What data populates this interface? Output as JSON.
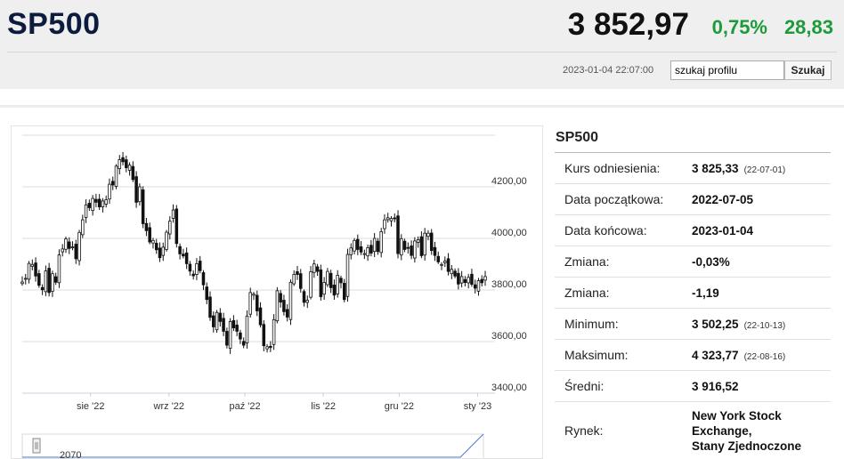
{
  "header": {
    "title": "SP500",
    "price": "3 852,97",
    "change_percent": "0,75%",
    "change_absolute": "28,83",
    "timestamp": "2023-01-04 22:07:00",
    "search_value": "szukaj profilu",
    "search_button": "Szukaj"
  },
  "colors": {
    "title": "#0d1b3e",
    "positive": "#1d9a3a",
    "grid": "#dddddd",
    "candle": "#111111",
    "navigator_line": "#4a79c4"
  },
  "info": {
    "title": "SP500",
    "rows": [
      {
        "label": "Kurs odniesienia:",
        "value": "3 825,33",
        "note": "(22-07-01)"
      },
      {
        "label": "Data początkowa:",
        "value": "2022-07-05",
        "note": ""
      },
      {
        "label": "Data końcowa:",
        "value": "2023-01-04",
        "note": ""
      },
      {
        "label": "Zmiana:",
        "value": "-0,03%",
        "note": ""
      },
      {
        "label": "Zmiana:",
        "value": "-1,19",
        "note": ""
      },
      {
        "label": "Minimum:",
        "value": "3 502,25",
        "note": "(22-10-13)"
      },
      {
        "label": "Maksimum:",
        "value": "4 323,77",
        "note": "(22-08-16)"
      },
      {
        "label": "Średni:",
        "value": "3 916,52",
        "note": ""
      }
    ],
    "market_label": "Rynek:",
    "market_lines": [
      "New York Stock",
      "Exchange,",
      "Stany Zjednoczone"
    ]
  },
  "chart_data": {
    "type": "candlestick",
    "y_ticks": [
      "4200,00",
      "4000,00",
      "3800,00",
      "3600,00",
      "3400,00"
    ],
    "y_tick_values": [
      4200,
      4000,
      3800,
      3600,
      3400
    ],
    "ylim": [
      3400,
      4400
    ],
    "x_ticks": [
      "sie '22",
      "wrz '22",
      "paź '22",
      "lis '22",
      "gru '22",
      "sty '23"
    ],
    "x_tick_dates": [
      "2022-08-01",
      "2022-09-01",
      "2022-10-01",
      "2022-11-01",
      "2022-12-01",
      "2023-01-01"
    ],
    "x_range": [
      "2022-07-05",
      "2023-01-04"
    ],
    "grid": true,
    "navigator_label": "2070",
    "close_values": [
      3831,
      3845,
      3903,
      3899,
      3854,
      3818,
      3801,
      3874,
      3790,
      3863,
      3830,
      3936,
      3959,
      3998,
      3961,
      3967,
      3921,
      4023,
      4072,
      4130,
      4119,
      4155,
      4140,
      4122,
      4145,
      4150,
      4210,
      4207,
      4280,
      4305,
      4297,
      4274,
      4284,
      4228,
      4140,
      4200,
      4057,
      4030,
      3986,
      3992,
      3956,
      3925,
      3966,
      4024,
      4067,
      4110,
      3980,
      3940,
      3932,
      3902,
      3873,
      3855,
      3902,
      3875,
      3820,
      3763,
      3694,
      3657,
      3713,
      3678,
      3640,
      3586,
      3678,
      3653,
      3640,
      3610,
      3586,
      3699,
      3790,
      3784,
      3719,
      3665,
      3584,
      3580,
      3577,
      3685,
      3797,
      3753,
      3716,
      3695,
      3830,
      3860,
      3860,
      3806,
      3752,
      3760,
      3871,
      3901,
      3872,
      3774,
      3829,
      3872,
      3809,
      3780,
      3857,
      3828,
      3763,
      3938,
      3963,
      3992,
      3957,
      3947,
      3941,
      3964,
      3943,
      4000,
      3949,
      4026,
      4072,
      4080,
      4077,
      4076,
      3941,
      3999,
      3957,
      3963,
      3934,
      3990,
      3995,
      3933,
      4020,
      4020,
      3953,
      3934,
      3909,
      3899,
      3912,
      3872,
      3880,
      3854,
      3823,
      3852,
      3829,
      3849,
      3822,
      3807,
      3836,
      3828,
      3852
    ]
  }
}
